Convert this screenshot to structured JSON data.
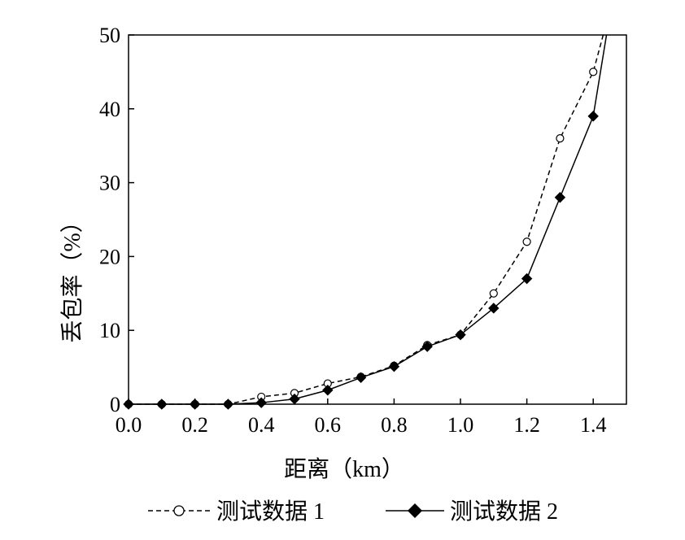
{
  "chart_data": {
    "type": "line",
    "xlabel": "距离（km）",
    "ylabel": "丢包率（%）",
    "xlim": [
      0,
      1.5
    ],
    "ylim": [
      0,
      50
    ],
    "x_ticks": [
      "0.0",
      "0.2",
      "0.4",
      "0.6",
      "0.8",
      "1.0",
      "1.2",
      "1.4"
    ],
    "y_ticks": [
      "0",
      "10",
      "20",
      "30",
      "40",
      "50"
    ],
    "grid": false,
    "legend_position": "bottom",
    "series": [
      {
        "name": "测试数据 1",
        "style": "dashed",
        "marker": "open-circle",
        "color": "#000000",
        "points": [
          {
            "x": 0.0,
            "y": 0
          },
          {
            "x": 0.1,
            "y": 0
          },
          {
            "x": 0.2,
            "y": 0
          },
          {
            "x": 0.3,
            "y": 0
          },
          {
            "x": 0.4,
            "y": 1.0
          },
          {
            "x": 0.5,
            "y": 1.5
          },
          {
            "x": 0.6,
            "y": 2.8
          },
          {
            "x": 0.7,
            "y": 3.7
          },
          {
            "x": 0.8,
            "y": 5.2
          },
          {
            "x": 0.9,
            "y": 8.0
          },
          {
            "x": 1.0,
            "y": 9.4
          },
          {
            "x": 1.1,
            "y": 15.0
          },
          {
            "x": 1.2,
            "y": 22.0
          },
          {
            "x": 1.3,
            "y": 36.0
          },
          {
            "x": 1.4,
            "y": 45.0
          },
          {
            "x": 1.43,
            "y": 50.0
          }
        ]
      },
      {
        "name": "测试数据 2",
        "style": "solid",
        "marker": "filled-diamond",
        "color": "#000000",
        "points": [
          {
            "x": 0.0,
            "y": 0
          },
          {
            "x": 0.1,
            "y": 0
          },
          {
            "x": 0.2,
            "y": 0
          },
          {
            "x": 0.3,
            "y": 0
          },
          {
            "x": 0.4,
            "y": 0.2
          },
          {
            "x": 0.5,
            "y": 0.7
          },
          {
            "x": 0.6,
            "y": 1.9
          },
          {
            "x": 0.7,
            "y": 3.6
          },
          {
            "x": 0.8,
            "y": 5.1
          },
          {
            "x": 0.9,
            "y": 7.8
          },
          {
            "x": 1.0,
            "y": 9.4
          },
          {
            "x": 1.1,
            "y": 13.0
          },
          {
            "x": 1.2,
            "y": 17.0
          },
          {
            "x": 1.3,
            "y": 28.0
          },
          {
            "x": 1.4,
            "y": 39.0
          },
          {
            "x": 1.44,
            "y": 50.0
          }
        ]
      }
    ]
  }
}
